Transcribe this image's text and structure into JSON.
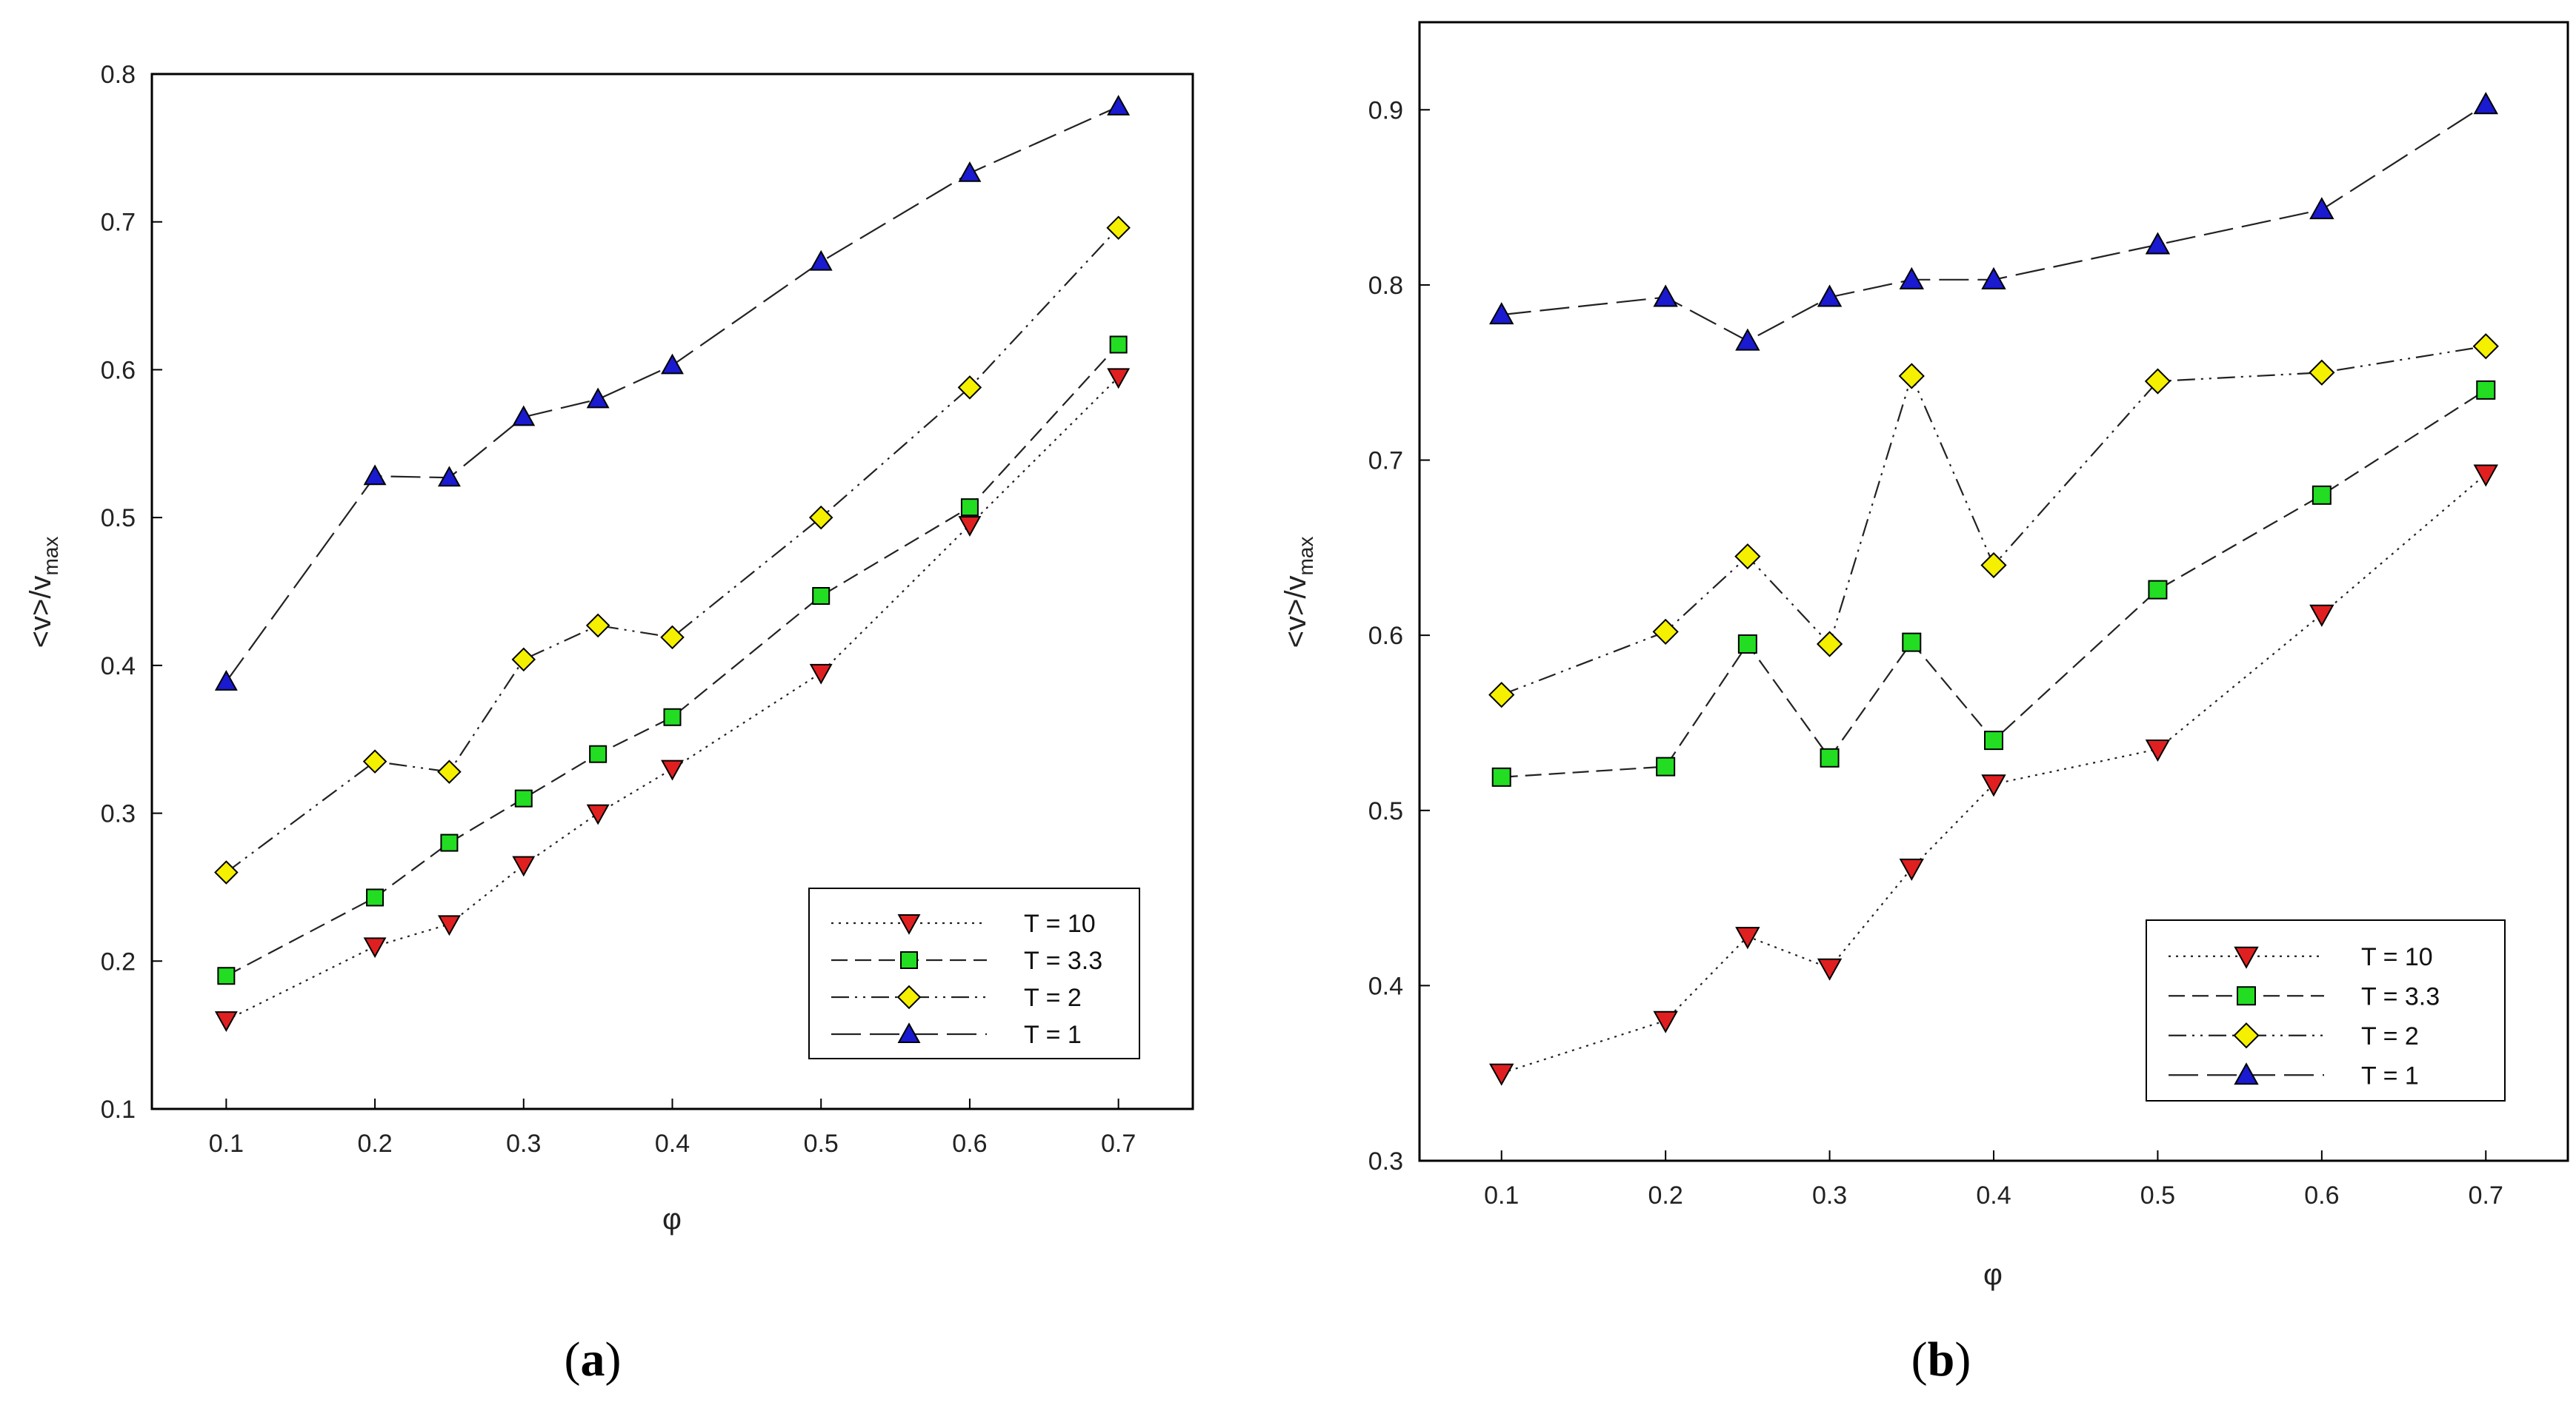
{
  "chart_data": [
    {
      "type": "line",
      "panel_label": "a",
      "xlabel": "φ",
      "ylabel": "<v>/v",
      "ylabel_sub": "max",
      "xlim": [
        0.05,
        0.75
      ],
      "ylim": [
        0.1,
        0.8
      ],
      "xticks": [
        "0.1",
        "0.2",
        "0.3",
        "0.4",
        "0.5",
        "0.6",
        "0.7"
      ],
      "yticks": [
        "0.1",
        "0.2",
        "0.3",
        "0.4",
        "0.5",
        "0.6",
        "0.7",
        "0.8"
      ],
      "legend_position": "bottom-right",
      "series": [
        {
          "name": "T = 10",
          "marker": "triangle-down",
          "color": "#e02020",
          "dash": "dotted",
          "x": [
            0.1,
            0.2,
            0.25,
            0.3,
            0.35,
            0.4,
            0.5,
            0.6,
            0.7
          ],
          "values": [
            0.16,
            0.21,
            0.225,
            0.265,
            0.3,
            0.33,
            0.395,
            0.495,
            0.595
          ]
        },
        {
          "name": "T = 3.3",
          "marker": "square",
          "color": "#22dd22",
          "dash": "dashed",
          "x": [
            0.1,
            0.2,
            0.25,
            0.3,
            0.35,
            0.4,
            0.5,
            0.6,
            0.7
          ],
          "values": [
            0.19,
            0.243,
            0.28,
            0.31,
            0.34,
            0.365,
            0.447,
            0.507,
            0.617
          ]
        },
        {
          "name": "T = 2",
          "marker": "diamond",
          "color": "#f4f000",
          "dash": "dashdotdot",
          "x": [
            0.1,
            0.2,
            0.25,
            0.3,
            0.35,
            0.4,
            0.5,
            0.6,
            0.7
          ],
          "values": [
            0.26,
            0.335,
            0.328,
            0.404,
            0.427,
            0.419,
            0.5,
            0.588,
            0.696
          ]
        },
        {
          "name": "T = 1",
          "marker": "triangle-up",
          "color": "#1a1ad0",
          "dash": "longdash",
          "x": [
            0.1,
            0.2,
            0.25,
            0.3,
            0.35,
            0.4,
            0.5,
            0.6,
            0.7
          ],
          "values": [
            0.389,
            0.528,
            0.527,
            0.568,
            0.58,
            0.603,
            0.673,
            0.733,
            0.778
          ]
        }
      ]
    },
    {
      "type": "line",
      "panel_label": "b",
      "xlabel": "φ",
      "ylabel": "<v>/v",
      "ylabel_sub": "max",
      "xlim": [
        0.05,
        0.75
      ],
      "ylim": [
        0.3,
        0.95
      ],
      "xticks": [
        "0.1",
        "0.2",
        "0.3",
        "0.4",
        "0.5",
        "0.6",
        "0.7"
      ],
      "yticks": [
        "0.3",
        "0.4",
        "0.5",
        "0.6",
        "0.7",
        "0.8",
        "0.9"
      ],
      "legend_position": "bottom-right",
      "series": [
        {
          "name": "T = 10",
          "marker": "triangle-down",
          "color": "#e02020",
          "dash": "dotted",
          "x": [
            0.1,
            0.2,
            0.25,
            0.3,
            0.35,
            0.4,
            0.5,
            0.6,
            0.7
          ],
          "values": [
            0.35,
            0.38,
            0.428,
            0.41,
            0.467,
            0.515,
            0.535,
            0.612,
            0.692
          ]
        },
        {
          "name": "T = 3.3",
          "marker": "square",
          "color": "#22dd22",
          "dash": "dashed",
          "x": [
            0.1,
            0.2,
            0.25,
            0.3,
            0.35,
            0.4,
            0.5,
            0.6,
            0.7
          ],
          "values": [
            0.519,
            0.525,
            0.595,
            0.53,
            0.596,
            0.54,
            0.626,
            0.68,
            0.74
          ]
        },
        {
          "name": "T = 2",
          "marker": "diamond",
          "color": "#f4f000",
          "dash": "dashdotdot",
          "x": [
            0.1,
            0.2,
            0.25,
            0.3,
            0.35,
            0.4,
            0.5,
            0.6,
            0.7
          ],
          "values": [
            0.566,
            0.602,
            0.645,
            0.595,
            0.748,
            0.64,
            0.745,
            0.75,
            0.765
          ]
        },
        {
          "name": "T = 1",
          "marker": "triangle-up",
          "color": "#1a1ad0",
          "dash": "longdash",
          "x": [
            0.1,
            0.2,
            0.25,
            0.3,
            0.35,
            0.4,
            0.5,
            0.6,
            0.7
          ],
          "values": [
            0.783,
            0.793,
            0.768,
            0.793,
            0.803,
            0.803,
            0.823,
            0.843,
            0.903
          ]
        }
      ]
    }
  ]
}
